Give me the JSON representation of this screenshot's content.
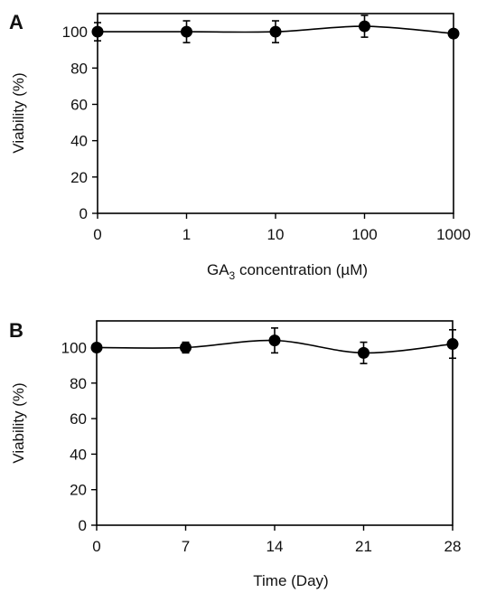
{
  "chart_data": [
    {
      "panel": "A",
      "type": "line",
      "categories": [
        "0",
        "1",
        "10",
        "100",
        "1000"
      ],
      "series": [
        {
          "values": [
            100,
            100,
            100,
            103,
            99
          ],
          "errors": [
            5,
            6,
            6,
            6,
            0
          ]
        }
      ],
      "yticks": [
        "0",
        "20",
        "40",
        "60",
        "80",
        "100"
      ],
      "ylim": [
        0,
        110
      ],
      "ylabel": "Viability (%)",
      "xlabel_prefix": "GA",
      "xlabel_sub": "3",
      "xlabel_suffix": " concentration (µM)",
      "grid": false,
      "colors": {
        "line": "#000000",
        "marker": "#000000"
      }
    },
    {
      "panel": "B",
      "type": "line",
      "categories": [
        "0",
        "7",
        "14",
        "21",
        "28"
      ],
      "series": [
        {
          "values": [
            100,
            100,
            104,
            97,
            102
          ],
          "errors": [
            0,
            3,
            7,
            6,
            8
          ]
        }
      ],
      "yticks": [
        "0",
        "20",
        "40",
        "60",
        "80",
        "100"
      ],
      "ylim": [
        0,
        115
      ],
      "ylabel": "Viability (%)",
      "xlabel": "Time  (Day)",
      "grid": false,
      "colors": {
        "line": "#000000",
        "marker": "#000000"
      }
    }
  ]
}
